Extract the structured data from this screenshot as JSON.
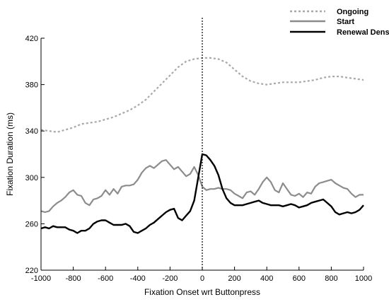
{
  "chart_data": {
    "type": "line",
    "title": "",
    "xlabel": "Fixation Onset wrt Buttonpress",
    "ylabel": "Fixation Duration (ms)",
    "xlim": [
      -1000,
      1000
    ],
    "ylim": [
      220,
      420
    ],
    "xticks": [
      -1000,
      -800,
      -600,
      -400,
      -200,
      0,
      200,
      400,
      600,
      800,
      1000
    ],
    "yticks": [
      220,
      260,
      300,
      340,
      380,
      420
    ],
    "grid": false,
    "legend_position": "top-right",
    "reference_line": {
      "x": 0,
      "style": "dotted"
    },
    "series": [
      {
        "name": "Ongoing",
        "color": "#a8a8a8",
        "dash": "dotted",
        "x": [
          -1000,
          -950,
          -900,
          -850,
          -800,
          -750,
          -700,
          -650,
          -600,
          -550,
          -500,
          -450,
          -400,
          -350,
          -300,
          -250,
          -200,
          -150,
          -100,
          -50,
          0,
          50,
          100,
          150,
          200,
          250,
          300,
          350,
          400,
          450,
          500,
          550,
          600,
          650,
          700,
          750,
          800,
          850,
          900,
          950,
          1000
        ],
        "y": [
          341,
          340,
          339,
          341,
          343,
          346,
          347,
          348,
          350,
          352,
          355,
          358,
          362,
          367,
          374,
          381,
          388,
          395,
          400,
          402,
          403,
          403,
          402,
          399,
          393,
          387,
          383,
          381,
          380,
          381,
          382,
          382,
          382,
          383,
          384,
          386,
          387,
          387,
          386,
          385,
          384
        ]
      },
      {
        "name": "Start",
        "color": "#8c8c8c",
        "dash": "solid",
        "x": [
          -1000,
          -975,
          -950,
          -925,
          -900,
          -875,
          -850,
          -825,
          -800,
          -775,
          -750,
          -725,
          -700,
          -675,
          -650,
          -625,
          -600,
          -575,
          -550,
          -525,
          -500,
          -475,
          -450,
          -425,
          -400,
          -375,
          -350,
          -325,
          -300,
          -275,
          -250,
          -225,
          -200,
          -175,
          -150,
          -125,
          -100,
          -75,
          -50,
          -25,
          0,
          25,
          50,
          75,
          100,
          125,
          150,
          175,
          200,
          225,
          250,
          275,
          300,
          325,
          350,
          375,
          400,
          425,
          450,
          475,
          500,
          525,
          550,
          575,
          600,
          625,
          650,
          675,
          700,
          725,
          750,
          775,
          800,
          825,
          850,
          875,
          900,
          925,
          950,
          975,
          1000
        ],
        "y": [
          271,
          270,
          271,
          275,
          278,
          280,
          283,
          287,
          289,
          285,
          284,
          278,
          276,
          281,
          282,
          284,
          289,
          285,
          290,
          286,
          292,
          293,
          293,
          294,
          298,
          304,
          308,
          310,
          308,
          311,
          314,
          315,
          311,
          307,
          309,
          305,
          301,
          303,
          309,
          302,
          292,
          289,
          290,
          290,
          291,
          290,
          290,
          289,
          286,
          284,
          282,
          287,
          288,
          285,
          290,
          296,
          300,
          296,
          289,
          287,
          295,
          290,
          285,
          284,
          286,
          283,
          287,
          286,
          292,
          295,
          296,
          297,
          298,
          295,
          293,
          291,
          290,
          286,
          283,
          285,
          285
        ]
      },
      {
        "name": "Renewal Density",
        "color": "#000000",
        "dash": "solid",
        "x": [
          -1000,
          -975,
          -950,
          -925,
          -900,
          -875,
          -850,
          -825,
          -800,
          -775,
          -750,
          -725,
          -700,
          -675,
          -650,
          -625,
          -600,
          -575,
          -550,
          -525,
          -500,
          -475,
          -450,
          -425,
          -400,
          -375,
          -350,
          -325,
          -300,
          -275,
          -250,
          -225,
          -200,
          -175,
          -150,
          -125,
          -100,
          -75,
          -50,
          -25,
          0,
          25,
          50,
          75,
          100,
          125,
          150,
          175,
          200,
          225,
          250,
          275,
          300,
          325,
          350,
          375,
          400,
          425,
          450,
          475,
          500,
          525,
          550,
          575,
          600,
          625,
          650,
          675,
          700,
          725,
          750,
          775,
          800,
          825,
          850,
          875,
          900,
          925,
          950,
          975,
          1000
        ],
        "y": [
          256,
          257,
          256,
          258,
          257,
          257,
          257,
          255,
          254,
          252,
          254,
          254,
          256,
          260,
          262,
          263,
          263,
          261,
          259,
          259,
          259,
          260,
          258,
          253,
          252,
          254,
          256,
          259,
          261,
          264,
          267,
          270,
          272,
          273,
          265,
          263,
          267,
          271,
          280,
          300,
          320,
          319,
          315,
          310,
          302,
          290,
          282,
          278,
          276,
          276,
          276,
          277,
          278,
          279,
          280,
          278,
          277,
          276,
          276,
          276,
          275,
          276,
          277,
          276,
          274,
          275,
          276,
          278,
          279,
          280,
          281,
          278,
          275,
          270,
          268,
          269,
          270,
          269,
          270,
          272,
          276
        ]
      }
    ]
  }
}
